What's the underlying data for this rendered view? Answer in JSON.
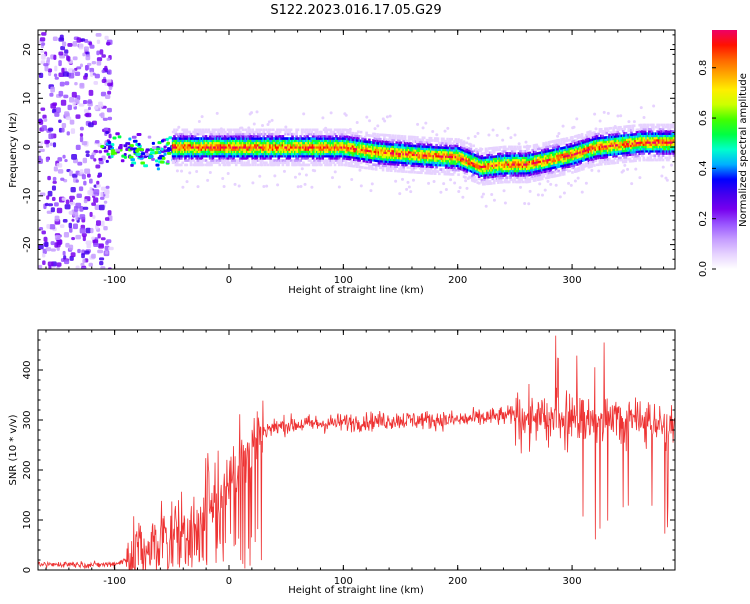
{
  "title": "S122.2023.016.17.05.G29",
  "chart_data": [
    {
      "type": "heatmap",
      "xlabel": "Height of straight line (km)",
      "ylabel": "Frequency (Hz)",
      "xlim": [
        -167,
        390
      ],
      "ylim": [
        -25,
        24
      ],
      "xticks": [
        -100,
        0,
        100,
        200,
        300
      ],
      "yticks": [
        -20,
        -10,
        0,
        10,
        20
      ],
      "colorbar": {
        "label": "Normalized spectral amplitude",
        "range": [
          0,
          0.95
        ],
        "ticks": [
          0.0,
          0.2,
          0.4,
          0.6,
          0.8
        ],
        "colors": [
          "#ffffff",
          "#e6d2ff",
          "#c59cff",
          "#9955ff",
          "#7700ee",
          "#4400ee",
          "#0000ff",
          "#00b0ff",
          "#00ffcc",
          "#00ff44",
          "#44ff00",
          "#ccff00",
          "#ffee00",
          "#ffaa00",
          "#ff6600",
          "#ff1100",
          "#ee0066"
        ]
      },
      "ridge": {
        "x": [
          -167,
          -120,
          -110,
          -100,
          -90,
          -80,
          -70,
          -60,
          -50,
          -40,
          -20,
          0,
          50,
          100,
          130,
          160,
          180,
          200,
          220,
          240,
          260,
          280,
          300,
          320,
          340,
          360,
          390
        ],
        "y": [
          0,
          0,
          0,
          0,
          0,
          -1,
          -2,
          -1,
          0,
          0,
          0,
          0,
          0,
          0,
          -1,
          -1.5,
          -1.8,
          -2,
          -4,
          -3.5,
          -3.5,
          -2.5,
          -1.5,
          0,
          0.5,
          1,
          1
        ]
      }
    },
    {
      "type": "line",
      "xlabel": "Height of straight line (km)",
      "ylabel": "SNR (10 * v/v)",
      "xlim": [
        -167,
        390
      ],
      "ylim": [
        0,
        480
      ],
      "xticks": [
        -100,
        0,
        100,
        200,
        300
      ],
      "yticks": [
        0,
        100,
        200,
        300,
        400
      ],
      "series_color": "#ee3333",
      "series": [
        {
          "x": [
            -167,
            -140,
            -120,
            -100,
            -90,
            -80,
            -70,
            -60,
            -50,
            -40,
            -30,
            -20,
            -10,
            0,
            10,
            20,
            30,
            50,
            100,
            150,
            200,
            250,
            280,
            300,
            330,
            360,
            390
          ],
          "values": [
            10,
            12,
            10,
            12,
            20,
            35,
            50,
            65,
            80,
            70,
            95,
            130,
            160,
            180,
            230,
            250,
            280,
            290,
            295,
            300,
            300,
            310,
            300,
            305,
            300,
            295,
            290
          ]
        }
      ]
    }
  ]
}
